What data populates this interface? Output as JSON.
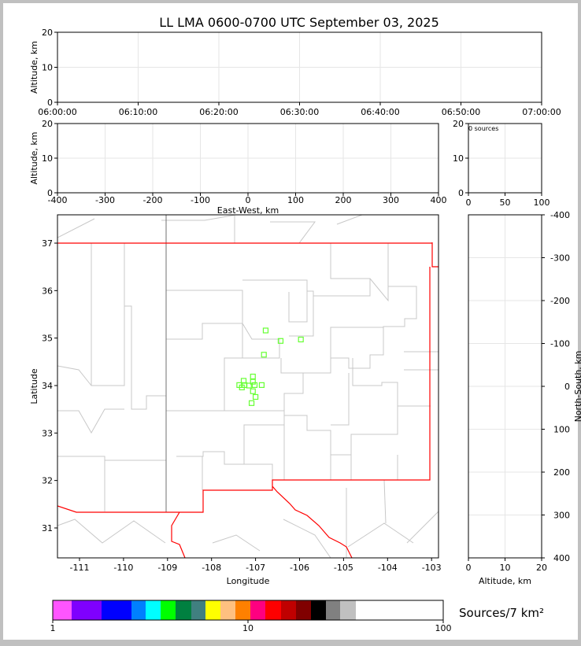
{
  "title": "LL LMA 0600-0700 UTC September 03, 2025",
  "chart_data": [
    {
      "type": "scatter",
      "panel": "time-height",
      "ylabel": "Altitude, km",
      "ylim": [
        0,
        20
      ],
      "yticks": [
        "0",
        "10",
        "20"
      ],
      "xticks": [
        "06:00:00",
        "06:10:00",
        "06:20:00",
        "06:30:00",
        "06:40:00",
        "06:50:00",
        "07:00:00"
      ],
      "grid": true,
      "points": []
    },
    {
      "type": "scatter",
      "panel": "east-west-height",
      "ylabel": "Altitude, km",
      "xlabel": "East-West, km",
      "xlim": [
        -400,
        400
      ],
      "ylim": [
        0,
        20
      ],
      "xticks": [
        "-400",
        "-300",
        "-200",
        "-100",
        "0",
        "100",
        "200",
        "300",
        "400"
      ],
      "yticks": [
        "0",
        "10",
        "20"
      ],
      "grid": true,
      "points": []
    },
    {
      "type": "line",
      "panel": "altitude-histogram",
      "annotation": "0 sources",
      "xlim": [
        0,
        100
      ],
      "ylim": [
        0,
        20
      ],
      "xticks": [
        "0",
        "50",
        "100"
      ],
      "yticks": [
        "0",
        "10",
        "20"
      ],
      "grid": true,
      "values": []
    },
    {
      "type": "scatter",
      "panel": "plan-view",
      "xlabel": "Longitude",
      "ylabel": "Latitude",
      "xlim": [
        -111.5,
        -102.85
      ],
      "ylim": [
        30.4,
        37.6
      ],
      "xticks": [
        "-111",
        "-110",
        "-109",
        "-108",
        "-107",
        "-106",
        "-105",
        "-104",
        "-103"
      ],
      "yticks": [
        "31",
        "32",
        "33",
        "34",
        "35",
        "36",
        "37"
      ],
      "marker_color": "#66ff33",
      "points": [
        {
          "lon": -106.77,
          "lat": 35.16
        },
        {
          "lon": -106.43,
          "lat": 34.94
        },
        {
          "lon": -105.97,
          "lat": 34.97
        },
        {
          "lon": -106.81,
          "lat": 34.65
        },
        {
          "lon": -107.06,
          "lat": 34.19
        },
        {
          "lon": -107.27,
          "lat": 34.1
        },
        {
          "lon": -107.06,
          "lat": 34.08
        },
        {
          "lon": -107.37,
          "lat": 34.01
        },
        {
          "lon": -107.25,
          "lat": 34.01
        },
        {
          "lon": -107.15,
          "lat": 34.0
        },
        {
          "lon": -107.02,
          "lat": 34.01
        },
        {
          "lon": -106.86,
          "lat": 34.01
        },
        {
          "lon": -107.31,
          "lat": 33.96
        },
        {
          "lon": -107.06,
          "lat": 33.88
        },
        {
          "lon": -107.0,
          "lat": 33.76
        },
        {
          "lon": -107.09,
          "lat": 33.63
        }
      ]
    },
    {
      "type": "scatter",
      "panel": "north-south-height",
      "ylabel": "North-South, km",
      "xlabel": "Altitude, km",
      "xlim": [
        0,
        20
      ],
      "ylim": [
        -400,
        400
      ],
      "xticks": [
        "0",
        "10",
        "20"
      ],
      "yticks": [
        "400",
        "300",
        "200",
        "100",
        "0",
        "-100",
        "-200",
        "-300",
        "-400"
      ],
      "grid": true,
      "points": []
    },
    {
      "type": "heatmap",
      "panel": "colorbar",
      "label": "Sources/7 km²",
      "scale": "log",
      "ticks": [
        "1",
        "10",
        "100"
      ],
      "colors": [
        "#ff55ff",
        "#7f00ff",
        "#0000ff",
        "#0000ff",
        "#0080ff",
        "#00ffff",
        "#00ff00",
        "#008040",
        "#408080",
        "#ffff00",
        "#ffc080",
        "#ff8000",
        "#ff0080",
        "#ff0000",
        "#c00000",
        "#800000",
        "#000000",
        "#808080",
        "#c0c0c0",
        "#ffffff"
      ]
    }
  ]
}
